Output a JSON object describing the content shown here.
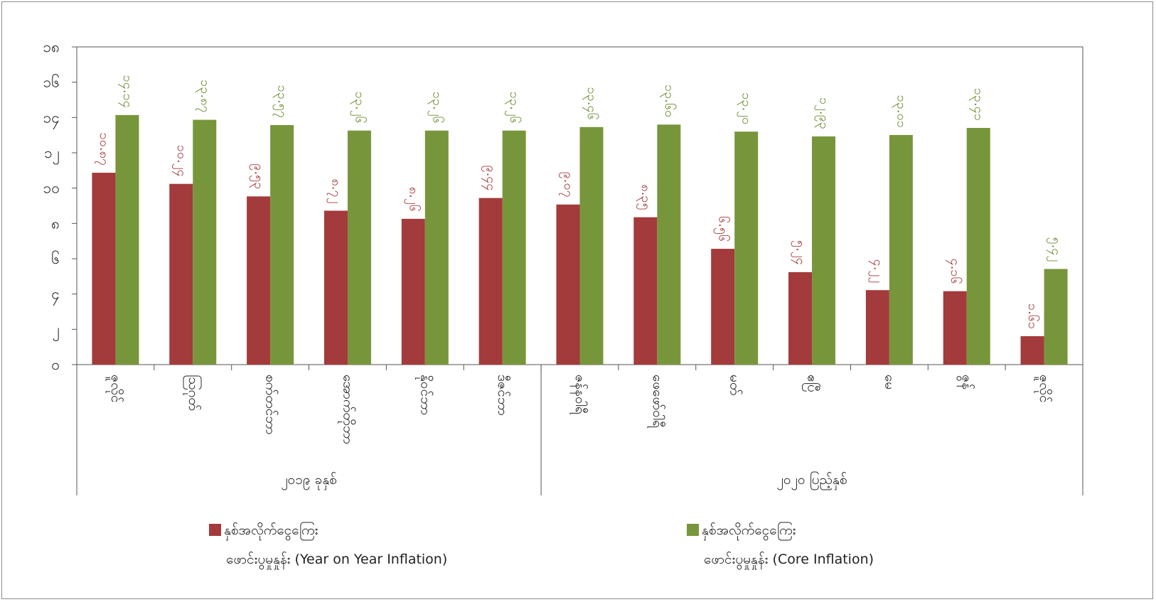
{
  "chart_data": {
    "type": "bar",
    "categories": [
      "ဇူလိုင်",
      "ဩဂုတ်",
      "စက်တင်ဘာ",
      "အောက်တိုဘာ",
      "နိုဝင်ဘာ",
      "ဒီဇင်ဘာ",
      "ဇန်နဝါရီ",
      "ဖေဖော်ဝါရီ",
      "မတ်",
      "ဧပြီ",
      "မေ",
      "ဇွန်",
      "ဇူလိုင်"
    ],
    "groups": [
      {
        "label": "၂၀၁၉ ခုနှစ်",
        "count": 6
      },
      {
        "label": "၂၀၂၀ ပြည့်နှစ်",
        "count": 7
      }
    ],
    "series": [
      {
        "name_line1": "နှစ်အလိုက်ငွေကြေး",
        "name_line2": "ဖောင်းပွမှုနှုန်း  (Year on Year Inflation)",
        "color": "#a33a3b",
        "label_color": "#a33a3b",
        "values": [
          10.87,
          10.24,
          9.53,
          8.72,
          8.26,
          9.44,
          9.07,
          8.35,
          6.56,
          5.24,
          4.22,
          4.16,
          1.61
        ],
        "labels": [
          "၁၀.၈၇",
          "၁၀.၂၄",
          "၉.၅၃",
          "၈.၇၂",
          "၈.၂၆",
          "၉.၄၄",
          "၉.၀၇",
          "၈.၃၅",
          "၆.၅၆",
          "၅.၂၄",
          "၄.၂၂",
          "၄.၁၆",
          "၁.၆၁"
        ]
      },
      {
        "name_line1": "နှစ်အလိုက်ငွေကြေး",
        "name_line2": "ဖောင်းပွမှုနှုန်း (Core Inflation)",
        "color": "#77963b",
        "label_color": "#6a8c2e",
        "values": [
          14.14,
          13.87,
          13.57,
          13.26,
          13.26,
          13.26,
          13.46,
          13.6,
          13.2,
          12.93,
          13.01,
          13.41,
          5.42
        ],
        "labels": [
          "၁၄.၁၄",
          "၁၃.၈၇",
          "၁၃.၅၇",
          "၁၃.၂၆",
          "၁၃.၂၆",
          "၁၃.၂၆",
          "၁၃.၄၆",
          "၁၃.၆၀",
          "၁၃.၂၀",
          "၁၂.၉၃",
          "၁၃.၀၁",
          "၁၃.၄၁",
          "၅.၄၂"
        ]
      }
    ],
    "ylim": [
      0,
      18
    ],
    "yticks": [
      0,
      2,
      4,
      6,
      8,
      10,
      12,
      14,
      16,
      18
    ],
    "ytick_labels": [
      "၀",
      "၂",
      "၄",
      "၆",
      "၈",
      "၁၀",
      "၁၂",
      "၁၄",
      "၁၆",
      "၁၈"
    ],
    "legend_position": "bottom",
    "grid": false,
    "title": "",
    "xlabel": "",
    "ylabel": ""
  }
}
